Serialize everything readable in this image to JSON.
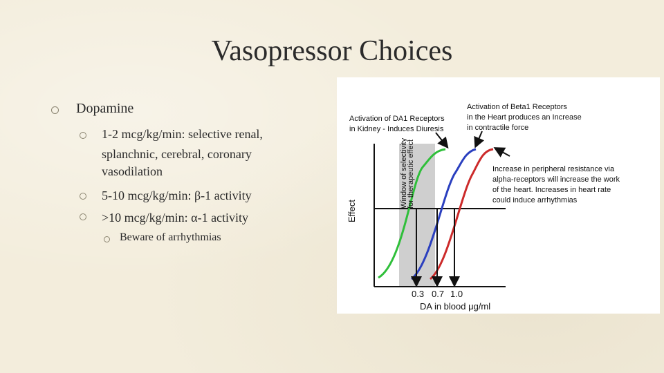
{
  "slide": {
    "title": "Vasopressor Choices",
    "bullets": {
      "level1": "Dopamine",
      "items": [
        {
          "line1": "1-2 mcg/kg/min: selective renal,",
          "line2": "splanchnic, cerebral, coronary",
          "line3": "vasodilation"
        },
        {
          "line1": "5-10 mcg/kg/min: β-1 activity"
        },
        {
          "line1": ">10 mcg/kg/min: α-1 activity"
        }
      ],
      "sub": "Beware of arrhythmias"
    }
  },
  "figure": {
    "ylabel": "Effect",
    "xlabel": "DA in blood μg/ml",
    "window_label_1": "Window of selectivity",
    "window_label_2": "for therapeutic effect",
    "ann_da1_1": "Activation of DA1 Receptors",
    "ann_da1_2": "in Kidney - Induces Diuresis",
    "ann_beta_1": "Activation of Beta1 Receptors",
    "ann_beta_2": "in the Heart produces an Increase",
    "ann_beta_3": "in contractile force",
    "ann_alpha_1": "Increase in peripheral resistance via",
    "ann_alpha_2": "alpha-receptors will increase the work",
    "ann_alpha_3": "of the heart. Increases in heart rate",
    "ann_alpha_4": "could induce arrhythmias",
    "tick_labels": [
      "0.3",
      "0.7",
      "1.0"
    ],
    "colors": {
      "green": "#2fbf3a",
      "blue": "#2a3fbf",
      "red": "#cc2a2a",
      "window": "#cfcfcf"
    }
  }
}
